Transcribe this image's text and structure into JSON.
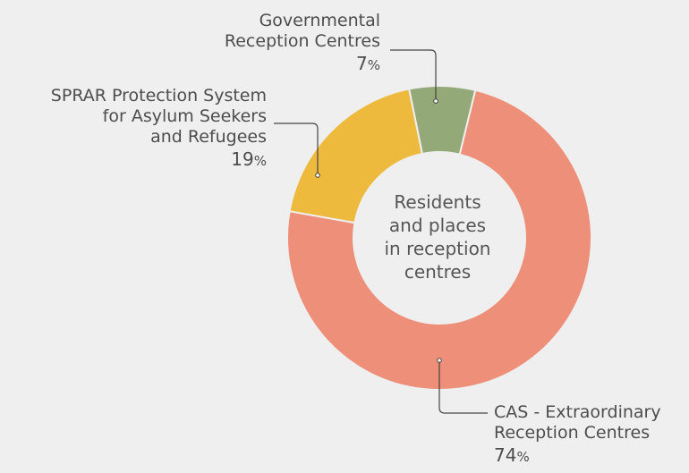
{
  "chart_data": {
    "type": "pie",
    "center_label": [
      "Residents",
      "and places",
      "in reception",
      "centres"
    ],
    "slices": [
      {
        "name_lines": [
          "CAS - Extraordinary",
          "Reception Centres"
        ],
        "value": 74,
        "value_label": "74",
        "color": "#ee8f79"
      },
      {
        "name_lines": [
          "SPRAR Protection System",
          "for Asylum Seekers",
          "and Refugees"
        ],
        "value": 19,
        "value_label": "19",
        "color": "#eeba3e"
      },
      {
        "name_lines": [
          "Governmental",
          "Reception Centres"
        ],
        "value": 7,
        "value_label": "7",
        "color": "#94a978"
      }
    ],
    "percent_symbol": "%",
    "donut": true,
    "legend": "callout-labels"
  }
}
